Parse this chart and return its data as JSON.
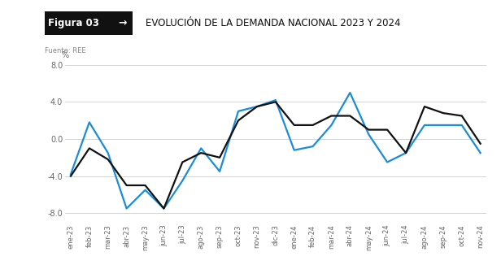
{
  "title": "EVOLUCIÓN DE LA DEMANDA NACIONAL 2023 Y 2024",
  "figura_label": "Figura 03",
  "arrow": "→",
  "source": "Fuente: REE",
  "ylabel": "%",
  "ylim": [
    -9,
    9
  ],
  "yticks": [
    -8.0,
    -4.0,
    0.0,
    4.0,
    8.0
  ],
  "categories": [
    "ene-23",
    "feb-23",
    "mar-23",
    "abr-23",
    "may-23",
    "jun-23",
    "jul-23",
    "ago-23",
    "sep-23",
    "oct-23",
    "nov-23",
    "dic-23",
    "ene-24",
    "feb-24",
    "mar-24",
    "abr-24",
    "may-24",
    "jun-24",
    "jul-24",
    "ago-24",
    "sep-24",
    "oct-24",
    "nov-24"
  ],
  "demanda_corregida": [
    -3.8,
    1.8,
    -1.5,
    -7.5,
    -5.5,
    -7.5,
    -4.5,
    -1.0,
    -3.5,
    3.0,
    3.5,
    4.2,
    -1.2,
    -0.8,
    1.5,
    5.0,
    0.5,
    -2.5,
    -1.5,
    1.5,
    1.5,
    1.5,
    -1.5
  ],
  "demanda_bruta": [
    -4.0,
    -1.0,
    -2.2,
    -5.0,
    -5.0,
    -7.5,
    -2.5,
    -1.5,
    -2.0,
    2.0,
    3.5,
    4.0,
    1.5,
    1.5,
    2.5,
    2.5,
    1.0,
    1.0,
    -1.5,
    3.5,
    2.8,
    2.5,
    -0.5
  ],
  "color_corregida": "#1a8dd9",
  "color_bruta": "#111111",
  "background_color": "#ffffff",
  "header_bg": "#111111",
  "header_fg": "#ffffff",
  "grid_color": "#cccccc",
  "tick_color": "#666666"
}
